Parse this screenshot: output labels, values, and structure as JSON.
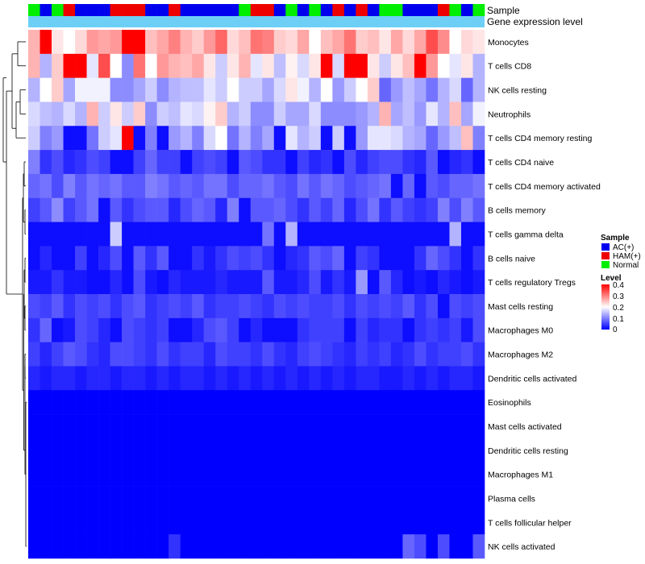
{
  "chart_data": {
    "type": "heatmap",
    "annotation_labels": {
      "sample": "Sample",
      "gene_level": "Gene expression level"
    },
    "rows": [
      "Monocytes",
      "T cells CD8",
      "NK cells resting",
      "Neutrophils",
      "T cells CD4 memory resting",
      "T cells CD4 naive",
      "T cells CD4 memory activated",
      "B cells memory",
      "T cells gamma delta",
      "B cells naive",
      "T cells regulatory  Tregs",
      "Mast cells resting",
      "Macrophages M0",
      "Macrophages M2",
      "Dendritic cells activated",
      "Eosinophils",
      "Mast cells activated",
      "Dendritic cells resting",
      "Macrophages M1",
      "Plasma cells",
      "T cells follicular helper",
      "NK cells activated"
    ],
    "sample_groups": [
      "Normal",
      "AC(+)",
      "Normal",
      "HAM(+)",
      "AC(+)",
      "AC(+)",
      "AC(+)",
      "HAM(+)",
      "HAM(+)",
      "HAM(+)",
      "AC(+)",
      "AC(+)",
      "HAM(+)",
      "AC(+)",
      "AC(+)",
      "AC(+)",
      "AC(+)",
      "AC(+)",
      "Normal",
      "HAM(+)",
      "HAM(+)",
      "AC(+)",
      "Normal",
      "AC(+)",
      "Normal",
      "AC(+)",
      "HAM(+)",
      "AC(+)",
      "HAM(+)",
      "AC(+)",
      "Normal",
      "Normal",
      "AC(+)",
      "AC(+)",
      "AC(+)",
      "HAM(+)",
      "Normal",
      "AC(+)",
      "Normal"
    ],
    "values": [
      [
        0.26,
        0.4,
        0.22,
        0.2,
        0.23,
        0.28,
        0.27,
        0.28,
        0.4,
        0.4,
        0.25,
        0.27,
        0.3,
        0.26,
        0.24,
        0.28,
        0.32,
        0.23,
        0.25,
        0.31,
        0.3,
        0.24,
        0.23,
        0.27,
        0.2,
        0.25,
        0.27,
        0.31,
        0.24,
        0.25,
        0.22,
        0.27,
        0.23,
        0.27,
        0.34,
        0.29,
        0.2,
        0.23,
        0.22
      ],
      [
        0.26,
        0.14,
        0.24,
        0.4,
        0.4,
        0.18,
        0.34,
        0.2,
        0.11,
        0.31,
        0.2,
        0.28,
        0.26,
        0.25,
        0.27,
        0.22,
        0.16,
        0.22,
        0.26,
        0.18,
        0.22,
        0.15,
        0.21,
        0.17,
        0.22,
        0.4,
        0.17,
        0.4,
        0.4,
        0.22,
        0.16,
        0.22,
        0.25,
        0.4,
        0.28,
        0.2,
        0.18,
        0.22,
        0.14
      ],
      [
        0.14,
        0.2,
        0.24,
        0.13,
        0.19,
        0.19,
        0.19,
        0.11,
        0.11,
        0.13,
        0.16,
        0.11,
        0.14,
        0.15,
        0.15,
        0.18,
        0.16,
        0.2,
        0.16,
        0.16,
        0.13,
        0.17,
        0.22,
        0.19,
        0.14,
        0.2,
        0.12,
        0.16,
        0.2,
        0.24,
        0.08,
        0.12,
        0.15,
        0.13,
        0.09,
        0.14,
        0.17,
        0.08,
        0.14
      ],
      [
        0.17,
        0.15,
        0.14,
        0.17,
        0.14,
        0.26,
        0.16,
        0.22,
        0.16,
        0.24,
        0.11,
        0.16,
        0.15,
        0.18,
        0.17,
        0.21,
        0.24,
        0.14,
        0.16,
        0.11,
        0.11,
        0.16,
        0.13,
        0.13,
        0.17,
        0.11,
        0.11,
        0.11,
        0.12,
        0.14,
        0.26,
        0.13,
        0.15,
        0.12,
        0.18,
        0.14,
        0.25,
        0.13,
        0.19
      ],
      [
        0.16,
        0.1,
        0.12,
        0.01,
        0.01,
        0.09,
        0.16,
        0.18,
        0.4,
        0.01,
        0.1,
        0.01,
        0.12,
        0.14,
        0.1,
        0.17,
        0.2,
        0.09,
        0.14,
        0.1,
        0.13,
        0.01,
        0.18,
        0.14,
        0.16,
        0.01,
        0.16,
        0.01,
        0.12,
        0.18,
        0.18,
        0.17,
        0.14,
        0.13,
        0.08,
        0.12,
        0.15,
        0.25,
        0.1
      ],
      [
        0.1,
        0.04,
        0.06,
        0.03,
        0.04,
        0.06,
        0.05,
        0.01,
        0.01,
        0.05,
        0.08,
        0.05,
        0.05,
        0.01,
        0.05,
        0.06,
        0.05,
        0.01,
        0.07,
        0.06,
        0.04,
        0.04,
        0.01,
        0.05,
        0.03,
        0.04,
        0.01,
        0.06,
        0.03,
        0.05,
        0.06,
        0.06,
        0.04,
        0.03,
        0.07,
        0.01,
        0.03,
        0.04,
        0.01
      ],
      [
        0.08,
        0.09,
        0.06,
        0.1,
        0.07,
        0.09,
        0.08,
        0.09,
        0.07,
        0.07,
        0.1,
        0.09,
        0.07,
        0.08,
        0.07,
        0.09,
        0.09,
        0.06,
        0.08,
        0.08,
        0.09,
        0.07,
        0.06,
        0.09,
        0.07,
        0.09,
        0.08,
        0.06,
        0.07,
        0.08,
        0.09,
        0.01,
        0.08,
        0.01,
        0.07,
        0.06,
        0.08,
        0.08,
        0.09
      ],
      [
        0.05,
        0.07,
        0.11,
        0.05,
        0.07,
        0.09,
        0.01,
        0.07,
        0.04,
        0.06,
        0.07,
        0.07,
        0.03,
        0.06,
        0.08,
        0.07,
        0.03,
        0.1,
        0.01,
        0.07,
        0.07,
        0.08,
        0.06,
        0.04,
        0.07,
        0.05,
        0.08,
        0.03,
        0.06,
        0.09,
        0.04,
        0.07,
        0.05,
        0.04,
        0.05,
        0.1,
        0.06,
        0.1,
        0.07
      ],
      [
        0.01,
        0.01,
        0.01,
        0.01,
        0.01,
        0.01,
        0.01,
        0.16,
        0.01,
        0.01,
        0.01,
        0.01,
        0.01,
        0.01,
        0.01,
        0.01,
        0.01,
        0.01,
        0.01,
        0.01,
        0.09,
        0.01,
        0.14,
        0.01,
        0.01,
        0.01,
        0.01,
        0.01,
        0.01,
        0.01,
        0.01,
        0.01,
        0.01,
        0.01,
        0.01,
        0.01,
        0.14,
        0.01,
        0.01
      ],
      [
        0.01,
        0.03,
        0.01,
        0.01,
        0.05,
        0.01,
        0.03,
        0.06,
        0.01,
        0.07,
        0.04,
        0.07,
        0.01,
        0.01,
        0.04,
        0.02,
        0.04,
        0.06,
        0.05,
        0.06,
        0.04,
        0.01,
        0.03,
        0.04,
        0.07,
        0.06,
        0.08,
        0.01,
        0.05,
        0.04,
        0.01,
        0.01,
        0.01,
        0.04,
        0.08,
        0.06,
        0.04,
        0.01,
        0.04
      ],
      [
        0.02,
        0.02,
        0.04,
        0.02,
        0.02,
        0.01,
        0.01,
        0.03,
        0.01,
        0.06,
        0.02,
        0.01,
        0.03,
        0.02,
        0.02,
        0.02,
        0.03,
        0.02,
        0.02,
        0.02,
        0.07,
        0.02,
        0.02,
        0.03,
        0.06,
        0.02,
        0.04,
        0.02,
        0.12,
        0.01,
        0.07,
        0.03,
        0.01,
        0.02,
        0.01,
        0.03,
        0.02,
        0.01,
        0.02
      ],
      [
        0.06,
        0.05,
        0.07,
        0.04,
        0.06,
        0.05,
        0.06,
        0.04,
        0.06,
        0.07,
        0.04,
        0.05,
        0.06,
        0.05,
        0.07,
        0.04,
        0.05,
        0.05,
        0.06,
        0.05,
        0.04,
        0.06,
        0.05,
        0.06,
        0.05,
        0.05,
        0.06,
        0.04,
        0.06,
        0.05,
        0.06,
        0.05,
        0.07,
        0.04,
        0.06,
        0.01,
        0.06,
        0.05,
        0.06
      ],
      [
        0.04,
        0.08,
        0.01,
        0.02,
        0.06,
        0.05,
        0.03,
        0.01,
        0.06,
        0.05,
        0.04,
        0.05,
        0.01,
        0.01,
        0.03,
        0.06,
        0.07,
        0.05,
        0.01,
        0.03,
        0.01,
        0.01,
        0.01,
        0.04,
        0.05,
        0.05,
        0.05,
        0.01,
        0.05,
        0.03,
        0.04,
        0.04,
        0.01,
        0.04,
        0.05,
        0.04,
        0.05,
        0.02,
        0.06
      ],
      [
        0.05,
        0.03,
        0.05,
        0.07,
        0.06,
        0.04,
        0.03,
        0.06,
        0.06,
        0.05,
        0.04,
        0.06,
        0.04,
        0.05,
        0.05,
        0.03,
        0.06,
        0.05,
        0.05,
        0.04,
        0.06,
        0.04,
        0.03,
        0.05,
        0.06,
        0.05,
        0.04,
        0.03,
        0.05,
        0.04,
        0.05,
        0.03,
        0.04,
        0.06,
        0.04,
        0.05,
        0.05,
        0.06,
        0.04
      ],
      [
        0.03,
        0.02,
        0.03,
        0.03,
        0.02,
        0.03,
        0.03,
        0.02,
        0.03,
        0.03,
        0.02,
        0.03,
        0.02,
        0.03,
        0.03,
        0.02,
        0.03,
        0.02,
        0.03,
        0.02,
        0.03,
        0.02,
        0.03,
        0.02,
        0.03,
        0.02,
        0.03,
        0.02,
        0.03,
        0.03,
        0.02,
        0.02,
        0.03,
        0.02,
        0.03,
        0.02,
        0.03,
        0.03,
        0.02
      ],
      [
        0.0,
        0.0,
        0.0,
        0.0,
        0.0,
        0.0,
        0.0,
        0.0,
        0.0,
        0.0,
        0.0,
        0.0,
        0.0,
        0.0,
        0.0,
        0.0,
        0.0,
        0.0,
        0.0,
        0.0,
        0.0,
        0.0,
        0.0,
        0.0,
        0.0,
        0.0,
        0.0,
        0.0,
        0.0,
        0.0,
        0.0,
        0.0,
        0.0,
        0.0,
        0.0,
        0.0,
        0.0,
        0.0,
        0.0
      ],
      [
        0.0,
        0.0,
        0.0,
        0.0,
        0.0,
        0.0,
        0.0,
        0.0,
        0.0,
        0.0,
        0.0,
        0.0,
        0.0,
        0.0,
        0.0,
        0.0,
        0.0,
        0.0,
        0.0,
        0.0,
        0.0,
        0.0,
        0.0,
        0.0,
        0.0,
        0.0,
        0.0,
        0.0,
        0.0,
        0.0,
        0.0,
        0.0,
        0.0,
        0.0,
        0.0,
        0.0,
        0.0,
        0.0,
        0.0
      ],
      [
        0.0,
        0.0,
        0.0,
        0.0,
        0.0,
        0.0,
        0.0,
        0.0,
        0.0,
        0.0,
        0.0,
        0.0,
        0.0,
        0.0,
        0.0,
        0.0,
        0.0,
        0.0,
        0.0,
        0.0,
        0.0,
        0.0,
        0.0,
        0.0,
        0.0,
        0.0,
        0.0,
        0.0,
        0.0,
        0.0,
        0.0,
        0.0,
        0.0,
        0.0,
        0.0,
        0.0,
        0.0,
        0.0,
        0.0
      ],
      [
        0.0,
        0.0,
        0.0,
        0.0,
        0.0,
        0.0,
        0.0,
        0.0,
        0.0,
        0.0,
        0.0,
        0.0,
        0.0,
        0.0,
        0.0,
        0.0,
        0.0,
        0.0,
        0.0,
        0.0,
        0.0,
        0.0,
        0.0,
        0.0,
        0.0,
        0.0,
        0.0,
        0.0,
        0.0,
        0.0,
        0.0,
        0.0,
        0.0,
        0.0,
        0.0,
        0.0,
        0.0,
        0.0,
        0.0
      ],
      [
        0.0,
        0.0,
        0.0,
        0.0,
        0.0,
        0.0,
        0.0,
        0.0,
        0.0,
        0.0,
        0.0,
        0.0,
        0.0,
        0.0,
        0.0,
        0.0,
        0.0,
        0.0,
        0.0,
        0.0,
        0.0,
        0.0,
        0.0,
        0.0,
        0.0,
        0.0,
        0.0,
        0.0,
        0.0,
        0.0,
        0.0,
        0.0,
        0.0,
        0.0,
        0.0,
        0.0,
        0.0,
        0.0,
        0.0
      ],
      [
        0.0,
        0.0,
        0.0,
        0.0,
        0.0,
        0.0,
        0.0,
        0.0,
        0.0,
        0.0,
        0.0,
        0.0,
        0.0,
        0.0,
        0.0,
        0.0,
        0.0,
        0.0,
        0.0,
        0.0,
        0.0,
        0.0,
        0.0,
        0.0,
        0.0,
        0.0,
        0.0,
        0.0,
        0.0,
        0.0,
        0.0,
        0.0,
        0.0,
        0.0,
        0.0,
        0.0,
        0.0,
        0.0,
        0.0
      ],
      [
        0.0,
        0.0,
        0.0,
        0.0,
        0.0,
        0.0,
        0.0,
        0.0,
        0.0,
        0.0,
        0.0,
        0.0,
        0.04,
        0.0,
        0.0,
        0.0,
        0.0,
        0.0,
        0.0,
        0.0,
        0.0,
        0.0,
        0.0,
        0.0,
        0.0,
        0.0,
        0.0,
        0.0,
        0.0,
        0.0,
        0.0,
        0.0,
        0.08,
        0.06,
        0.0,
        0.06,
        0.0,
        0.0,
        0.07
      ]
    ],
    "legend": {
      "sample_title": "Sample",
      "groups": [
        "AC(+)",
        "HAM(+)",
        "Normal"
      ],
      "group_colors": {
        "AC(+)": "#0000ee",
        "HAM(+)": "#ee0000",
        "Normal": "#00ee00"
      },
      "level_title": "Level",
      "level_ticks": [
        0.4,
        0.3,
        0.2,
        0.1,
        0
      ],
      "level_range": [
        0,
        0.4
      ]
    },
    "colors": {
      "low": "#0000ff",
      "mid": "#ffffff",
      "high": "#ff0000",
      "gene_level_bar": "#6ecff6"
    }
  }
}
